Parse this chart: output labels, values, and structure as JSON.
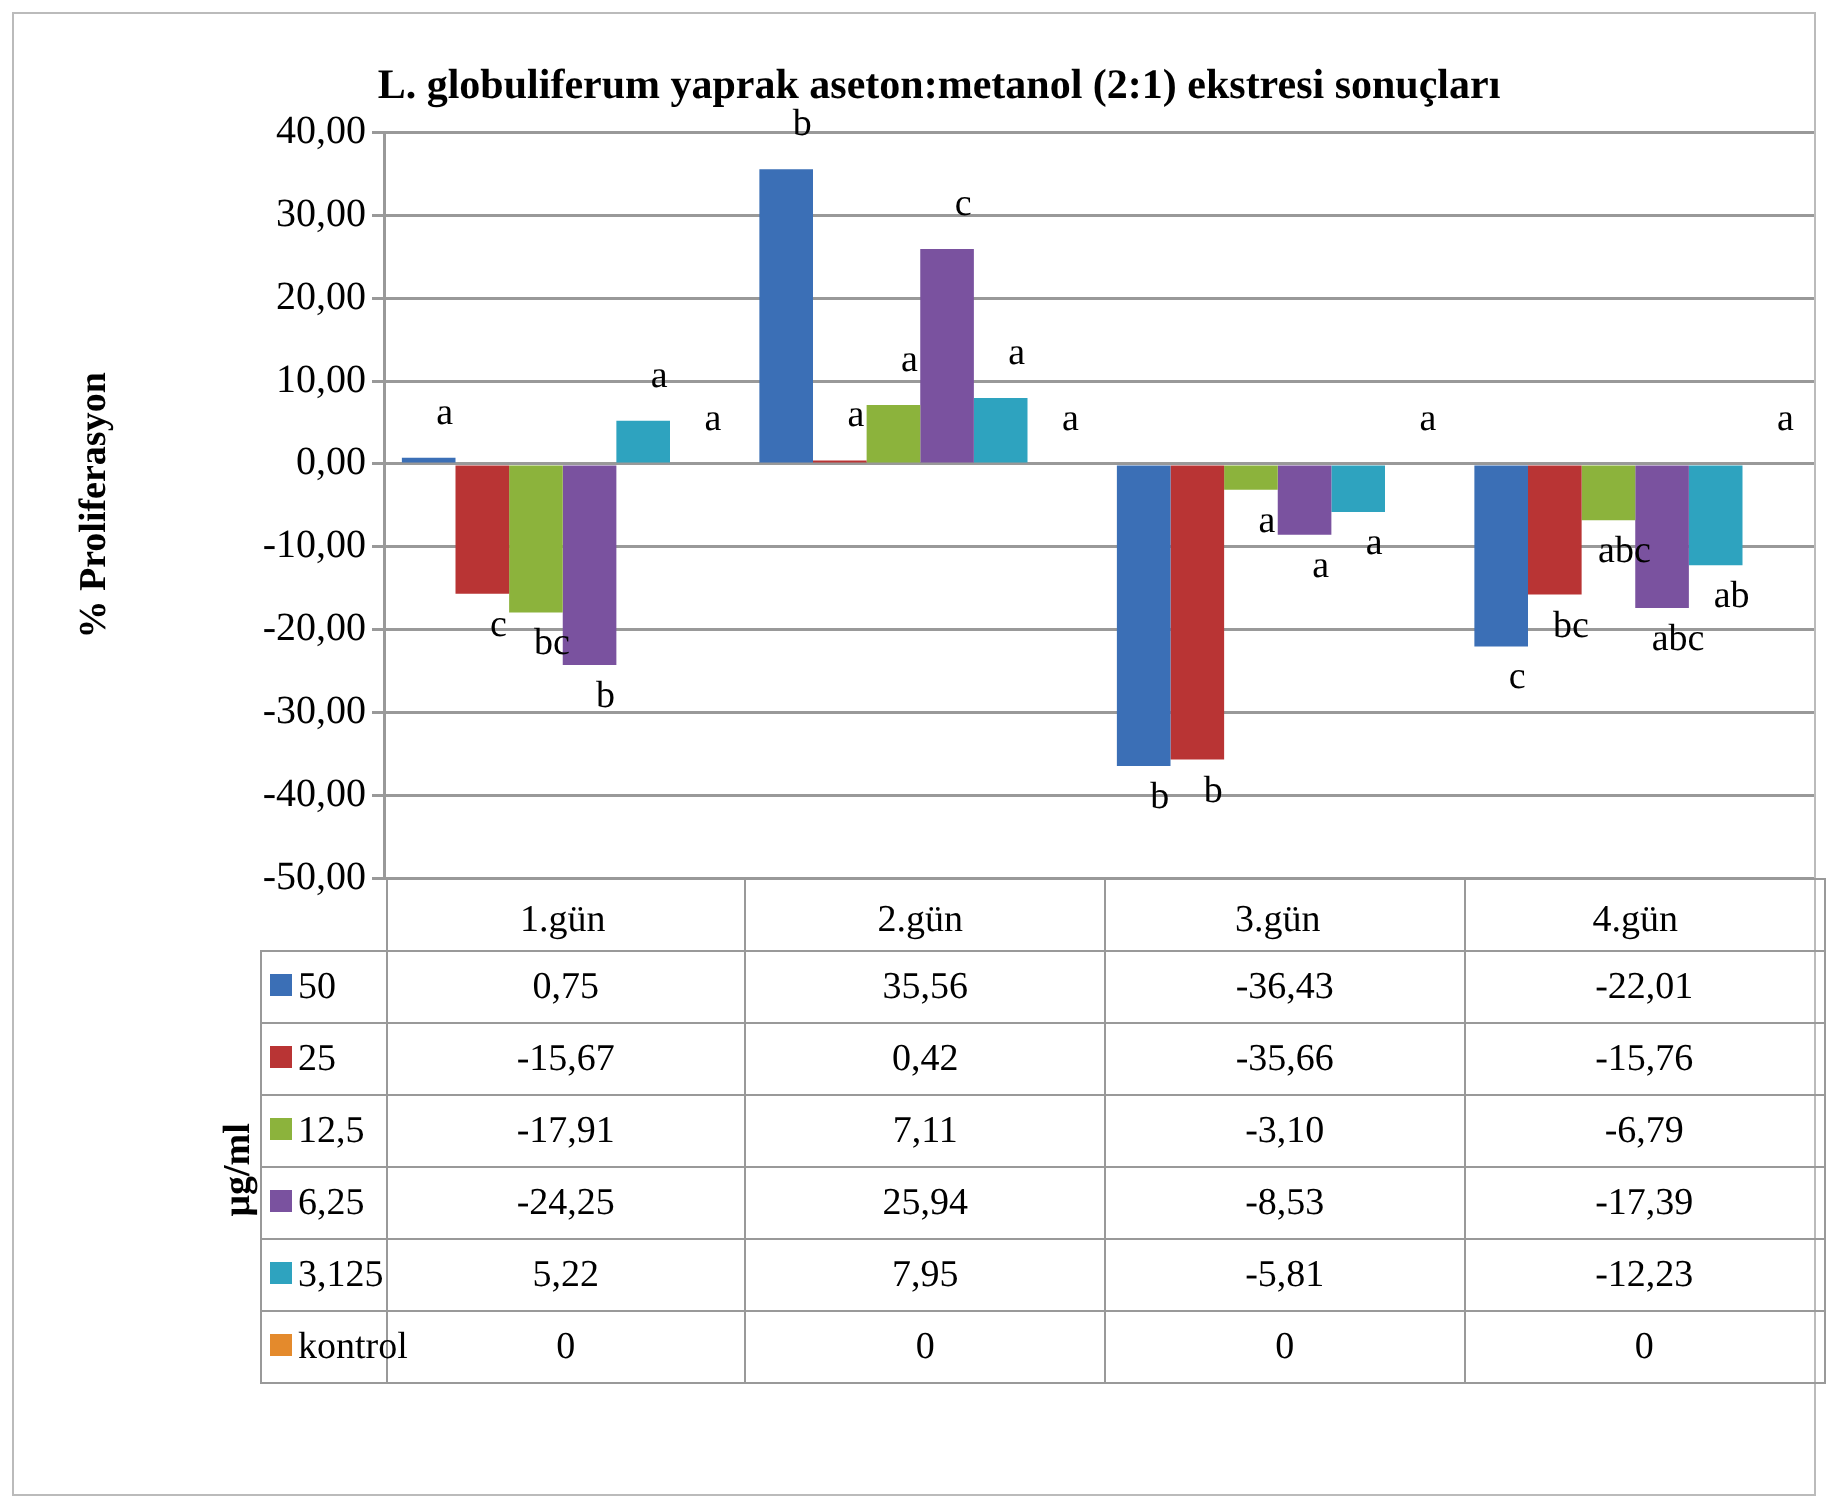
{
  "chart_data": {
    "type": "bar",
    "title": "L. globuliferum yaprak aseton:metanol (2:1) ekstresi sonuçları",
    "ylabel": "% Proliferasyon",
    "legend_title": "µg/ml",
    "categories": [
      "1.gün",
      "2.gün",
      "3.gün",
      "4.gün"
    ],
    "series": [
      {
        "name": "50",
        "color": "#3b6fb6",
        "values": [
          0.75,
          35.56,
          -36.43,
          -22.01
        ],
        "value_labels": [
          "0,75",
          "35,56",
          "-36,43",
          "-22,01"
        ]
      },
      {
        "name": "25",
        "color": "#b93434",
        "values": [
          -15.67,
          0.42,
          -35.66,
          -15.76
        ],
        "value_labels": [
          "-15,67",
          "0,42",
          "-35,66",
          "-15,76"
        ]
      },
      {
        "name": "12,5",
        "color": "#8cb33c",
        "values": [
          -17.91,
          7.11,
          -3.1,
          -6.79
        ],
        "value_labels": [
          "-17,91",
          "7,11",
          "-3,10",
          "-6,79"
        ]
      },
      {
        "name": "6,25",
        "color": "#7a529f",
        "values": [
          -24.25,
          25.94,
          -8.53,
          -17.39
        ],
        "value_labels": [
          "-24,25",
          "25,94",
          "-8,53",
          "-17,39"
        ]
      },
      {
        "name": "3,125",
        "color": "#2ea3bf",
        "values": [
          5.22,
          7.95,
          -5.81,
          -12.23
        ],
        "value_labels": [
          "5,22",
          "7,95",
          "-5,81",
          "-12,23"
        ]
      },
      {
        "name": "kontrol",
        "color": "#e48a2c",
        "values": [
          0,
          0,
          0,
          0
        ],
        "value_labels": [
          "0",
          "0",
          "0",
          "0"
        ]
      }
    ],
    "ylim": [
      -50,
      40
    ],
    "yticks": [
      {
        "value": -50,
        "label": "-50,00"
      },
      {
        "value": -40,
        "label": "-40,00"
      },
      {
        "value": -30,
        "label": "-30,00"
      },
      {
        "value": -20,
        "label": "-20,00"
      },
      {
        "value": -10,
        "label": "-10,00"
      },
      {
        "value": 0,
        "label": "0,00"
      },
      {
        "value": 10,
        "label": "10,00"
      },
      {
        "value": 20,
        "label": "20,00"
      },
      {
        "value": 30,
        "label": "30,00"
      },
      {
        "value": 40,
        "label": "40,00"
      }
    ],
    "grid": "y",
    "legend": "bottom",
    "annotations": [
      "a",
      "c",
      "bc",
      "b",
      "a",
      "a",
      "b",
      "a",
      "a",
      "c",
      "a",
      "a",
      "b",
      "b",
      "a",
      "a",
      "a",
      "a",
      "c",
      "bc",
      "abc",
      "abc",
      "ab",
      "a"
    ]
  }
}
